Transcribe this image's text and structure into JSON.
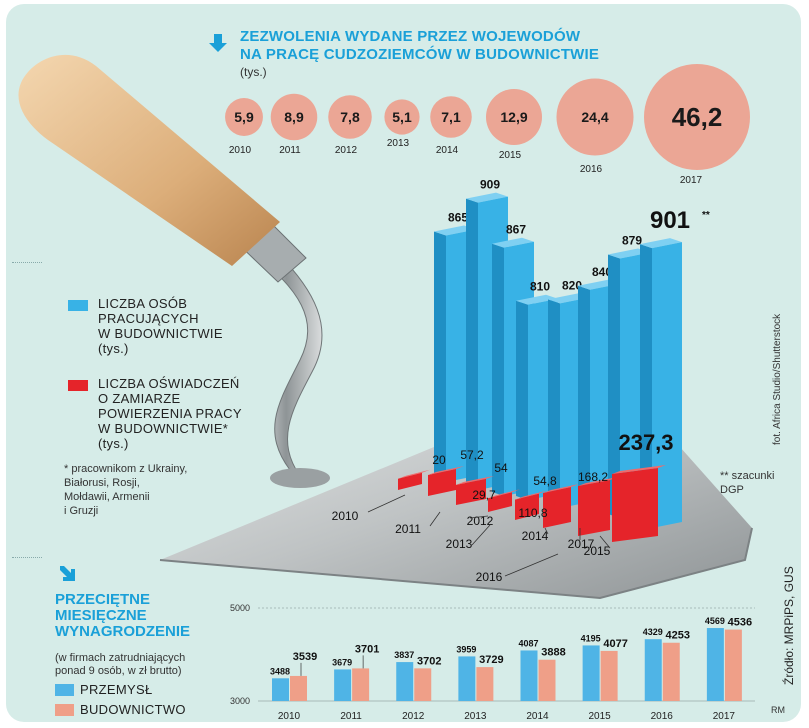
{
  "permits": {
    "title_line1": "ZEZWOLENIA WYDANE PRZEZ WOJEWODÓW",
    "title_line2": "NA PRACĘ CUDZOZIEMCÓW W BUDOWNICTWIE",
    "unit": "(tys.)"
  },
  "workers_legend": {
    "line1": "LICZBA OSÓB",
    "line2": "PRACUJĄCYCH",
    "line3": "W BUDOWNICTWIE",
    "unit": "(tys.)"
  },
  "declarations_legend": {
    "line1": "LICZBA OŚWIADCZEŃ",
    "line2": "O ZAMIARZE",
    "line3": "POWIERZENIA PRACY",
    "line4": "W BUDOWNICTWIE*",
    "unit": "(tys.)"
  },
  "footnote": {
    "line1": "* pracownikom z Ukrainy,",
    "line2": "Białorusi, Rosji,",
    "line3": "Mołdawii, Armenii",
    "line4": "i Gruzji"
  },
  "estimate_note": {
    "line1": "** szacunki",
    "line2": "DGP"
  },
  "photo_credit": "fot. Africa Studio/Shutterstock",
  "source": "Źródło: MRPiPS, GUS",
  "author": "RM",
  "wages": {
    "title_line1": "PRZECIĘTNE",
    "title_line2": "MIESIĘCZNE",
    "title_line3": "WYNAGRODZENIE",
    "subtitle_line1": "(w firmach zatrudniających",
    "subtitle_line2": "ponad 9 osób, w zł brutto)",
    "legend_industry": "PRZEMYSŁ",
    "legend_construction": "BUDOWNICTWO"
  },
  "colors": {
    "panel": "#d6ece8",
    "title_blue": "#1aa0d8",
    "circle": "#eba695",
    "bar_blue": "#38b2e6",
    "bar_red": "#e5242a",
    "wage_blue": "#4fb4e6",
    "wage_salmon": "#ef9f88"
  },
  "chart_data": [
    {
      "type": "bubble",
      "title": "ZEZWOLENIA WYDANE PRZEZ WOJEWODÓW NA PRACĘ CUDZOZIEMCÓW W BUDOWNICTWIE",
      "unit": "tys.",
      "categories": [
        "2010",
        "2011",
        "2012",
        "2013",
        "2014",
        "2015",
        "2016",
        "2017"
      ],
      "values": [
        5.9,
        8.9,
        7.8,
        5.1,
        7.1,
        12.9,
        24.4,
        46.2
      ],
      "labels": [
        "5,9",
        "8,9",
        "7,8",
        "5,1",
        "7,1",
        "12,9",
        "24,4",
        "46,2"
      ]
    },
    {
      "type": "bar",
      "title": "LICZBA OSÓB PRACUJĄCYCH W BUDOWNICTWIE",
      "unit": "tys.",
      "categories": [
        "2010",
        "2011",
        "2012",
        "2013",
        "2014",
        "2015",
        "2016",
        "2017"
      ],
      "values": [
        865,
        909,
        867,
        810,
        820,
        840,
        879,
        901
      ],
      "labels": [
        "865",
        "909",
        "867",
        "810",
        "820",
        "840",
        "879",
        "901"
      ],
      "estimated_label": "**"
    },
    {
      "type": "bar",
      "title": "LICZBA OŚWIADCZEŃ O ZAMIARZE POWIERZENIA PRACY W BUDOWNICTWIE",
      "unit": "tys.",
      "categories": [
        "2010",
        "2011",
        "2012",
        "2013",
        "2014",
        "2015",
        "2016",
        "2017"
      ],
      "values": [
        20,
        57.2,
        54,
        29.7,
        54.8,
        110.8,
        168.2,
        237.3
      ],
      "labels": [
        "20",
        "57,2",
        "54",
        "29,7",
        "54,8",
        "110,8",
        "168,2",
        "237,3"
      ]
    },
    {
      "type": "bar",
      "title": "PRZECIĘTNE MIESIĘCZNE WYNAGRODZENIE",
      "unit": "zł brutto",
      "categories": [
        "2010",
        "2011",
        "2012",
        "2013",
        "2014",
        "2015",
        "2016",
        "2017"
      ],
      "ylim": [
        3000,
        5000
      ],
      "yticks": [
        "3000",
        "5000"
      ],
      "series": [
        {
          "name": "PRZEMYSŁ",
          "values": [
            3488,
            3679,
            3837,
            3959,
            4087,
            4195,
            4329,
            4569
          ],
          "labels": [
            "3488",
            "3679",
            "3837",
            "3959",
            "4087",
            "4195",
            "4329",
            "4569"
          ]
        },
        {
          "name": "BUDOWNICTWO",
          "values": [
            3539,
            3701,
            3702,
            3729,
            3888,
            4077,
            4253,
            4536
          ],
          "labels": [
            "3539",
            "3701",
            "3702",
            "3729",
            "3888",
            "4077",
            "4253",
            "4536"
          ]
        }
      ]
    }
  ]
}
